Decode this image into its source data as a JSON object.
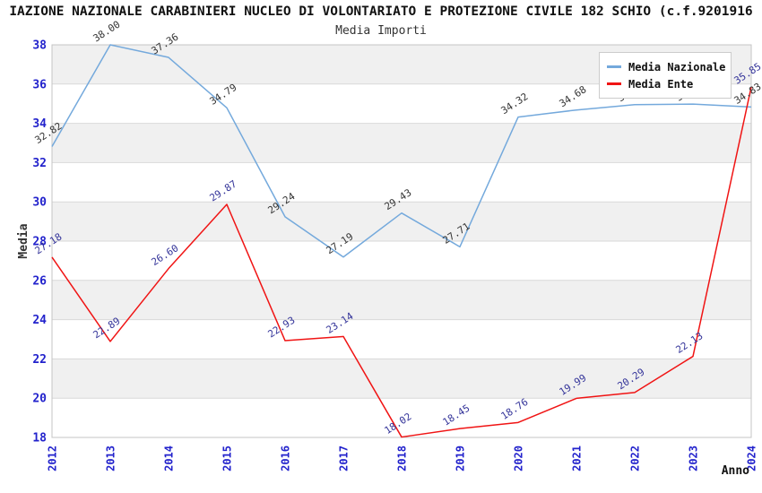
{
  "header": {
    "title": "IAZIONE NAZIONALE CARABINIERI NUCLEO DI VOLONTARIATO E PROTEZIONE CIVILE 182 SCHIO (c.f.9201916",
    "subtitle": "Media Importi"
  },
  "axes": {
    "y_label": "Media",
    "x_label": "Anno",
    "y_ticks": [
      38,
      36,
      34,
      32,
      30,
      28,
      26,
      24,
      22,
      20,
      18
    ],
    "tick_color": "#2222cc"
  },
  "colors": {
    "band": "#f0f0f0",
    "grid": "#d9d9d9",
    "plot_border": "#c4c4c4",
    "axis_title": "#333333",
    "x_label_color": "#111111"
  },
  "chart_data": {
    "type": "line",
    "title": "Media Importi",
    "xlabel": "Anno",
    "ylabel": "Media",
    "ylim": [
      18,
      38
    ],
    "grid": "horizontal-bands",
    "legend_position": "top-right",
    "categories": [
      "2012",
      "2013",
      "2014",
      "2015",
      "2016",
      "2017",
      "2018",
      "2019",
      "2020",
      "2021",
      "2022",
      "2023",
      "2024"
    ],
    "series": [
      {
        "name": "Media Nazionale",
        "color": "#74a9dc",
        "label_color": "#333333",
        "values": [
          32.82,
          38.0,
          37.36,
          34.79,
          29.24,
          27.19,
          29.43,
          27.71,
          34.32,
          34.68,
          34.95,
          34.98,
          34.83
        ]
      },
      {
        "name": "Media Ente",
        "color": "#f01414",
        "label_color": "#333399",
        "values": [
          27.18,
          22.89,
          26.6,
          29.87,
          22.93,
          23.14,
          18.02,
          18.45,
          18.76,
          19.99,
          20.29,
          22.13,
          35.85
        ]
      }
    ]
  }
}
